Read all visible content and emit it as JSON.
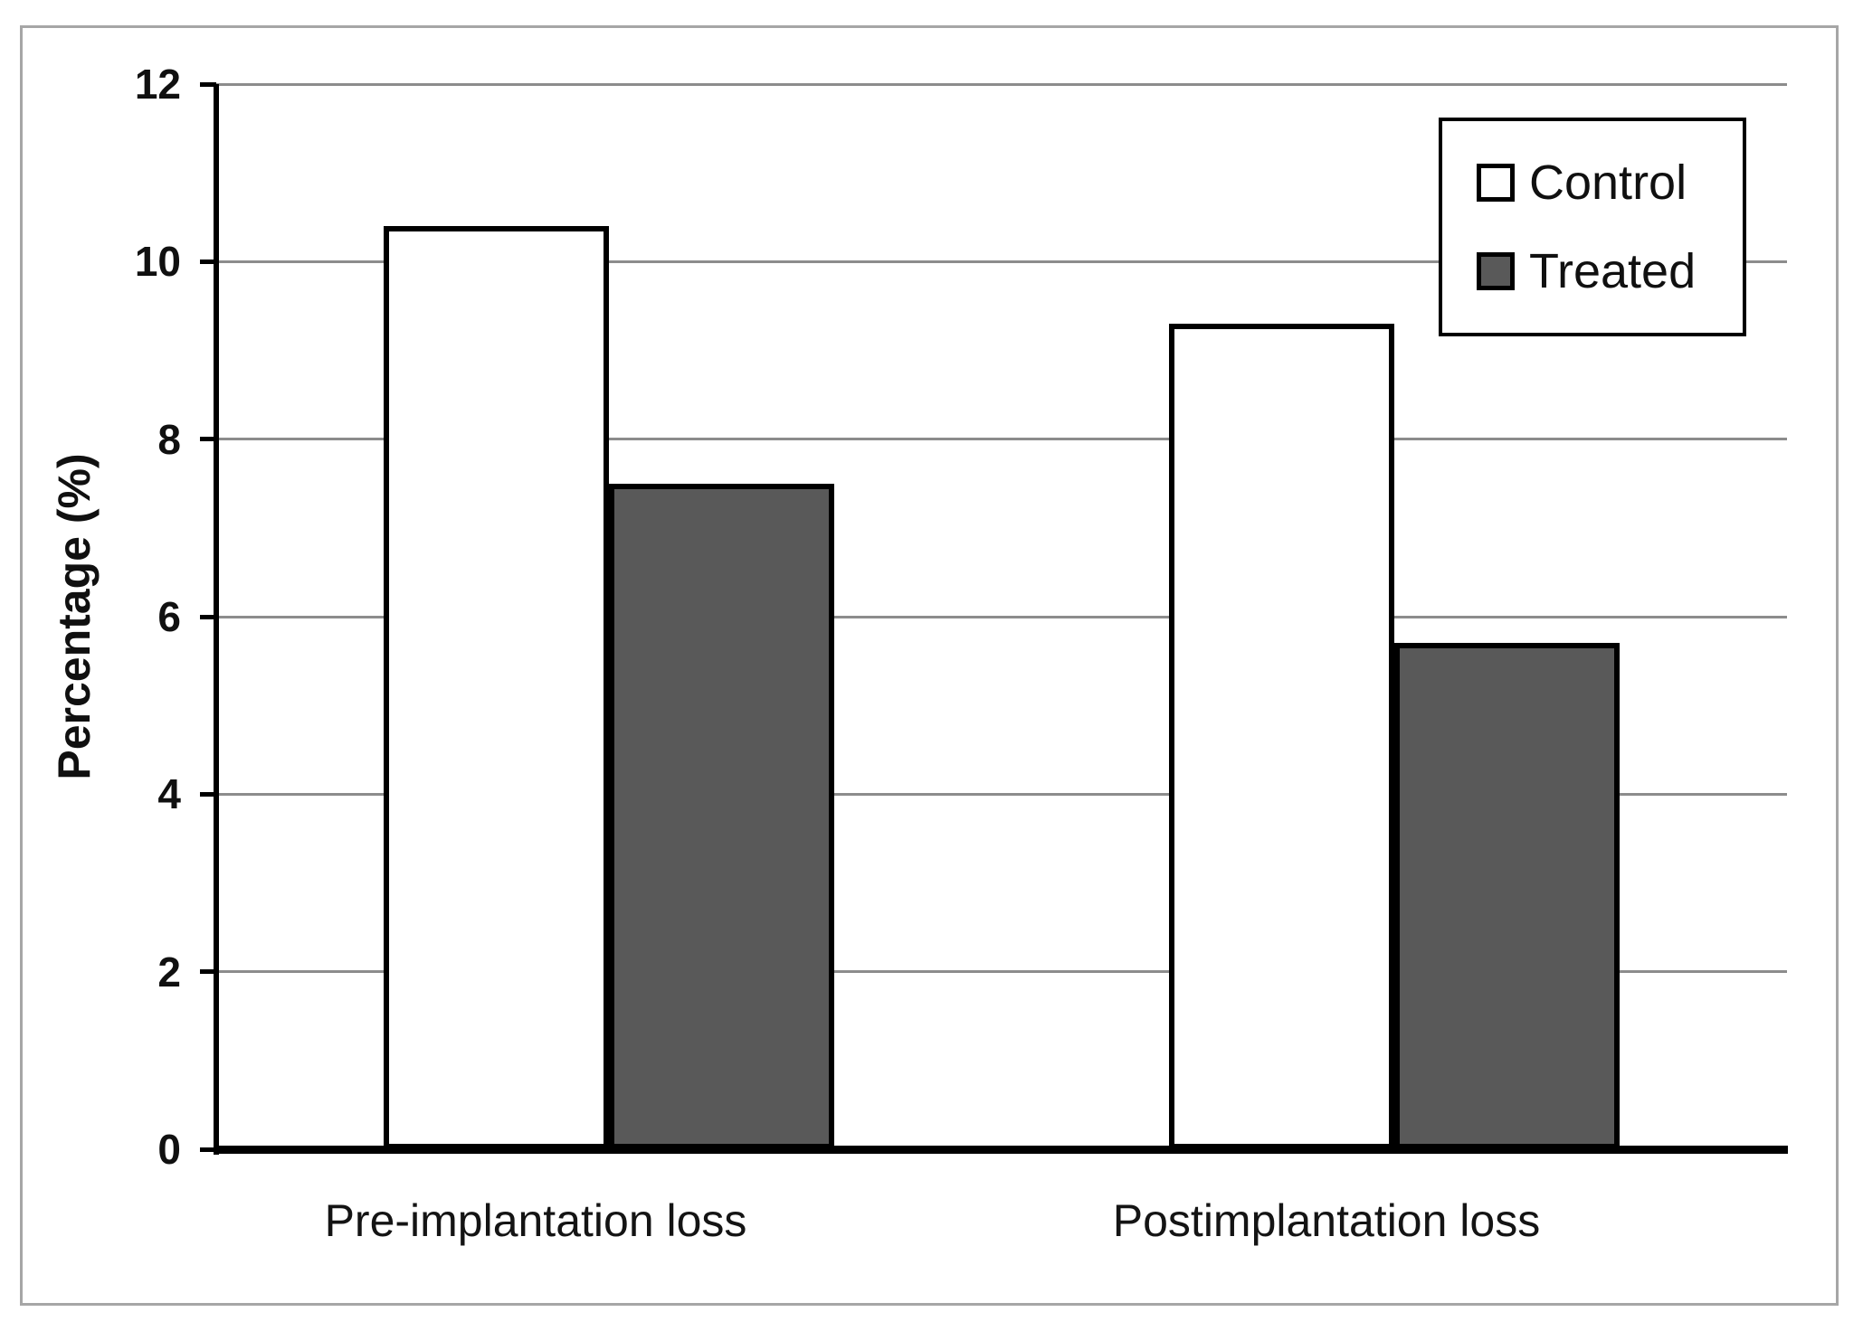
{
  "figure": {
    "background": "#ffffff",
    "frame_border_color": "#a6a6a6"
  },
  "chart_data": {
    "type": "bar",
    "categories": [
      "Pre-implantation loss",
      "Postimplantation loss"
    ],
    "series": [
      {
        "name": "Control",
        "values": [
          10.4,
          9.3
        ],
        "fill": "#ffffff",
        "border": "#000000"
      },
      {
        "name": "Treated",
        "values": [
          7.5,
          5.7
        ],
        "fill": "#595959",
        "border": "#000000"
      }
    ],
    "title": "",
    "xlabel": "",
    "ylabel": "Percentage (%)",
    "ylim": [
      0,
      12
    ],
    "ytick_step": 2,
    "ytick_labels": [
      "0",
      "2",
      "4",
      "6",
      "8",
      "10",
      "12"
    ],
    "grid": true,
    "gridline_color": "#8c8c8c",
    "axis_color": "#000000",
    "legend_position": "top-right",
    "legend_entries": [
      "Control",
      "Treated"
    ]
  }
}
